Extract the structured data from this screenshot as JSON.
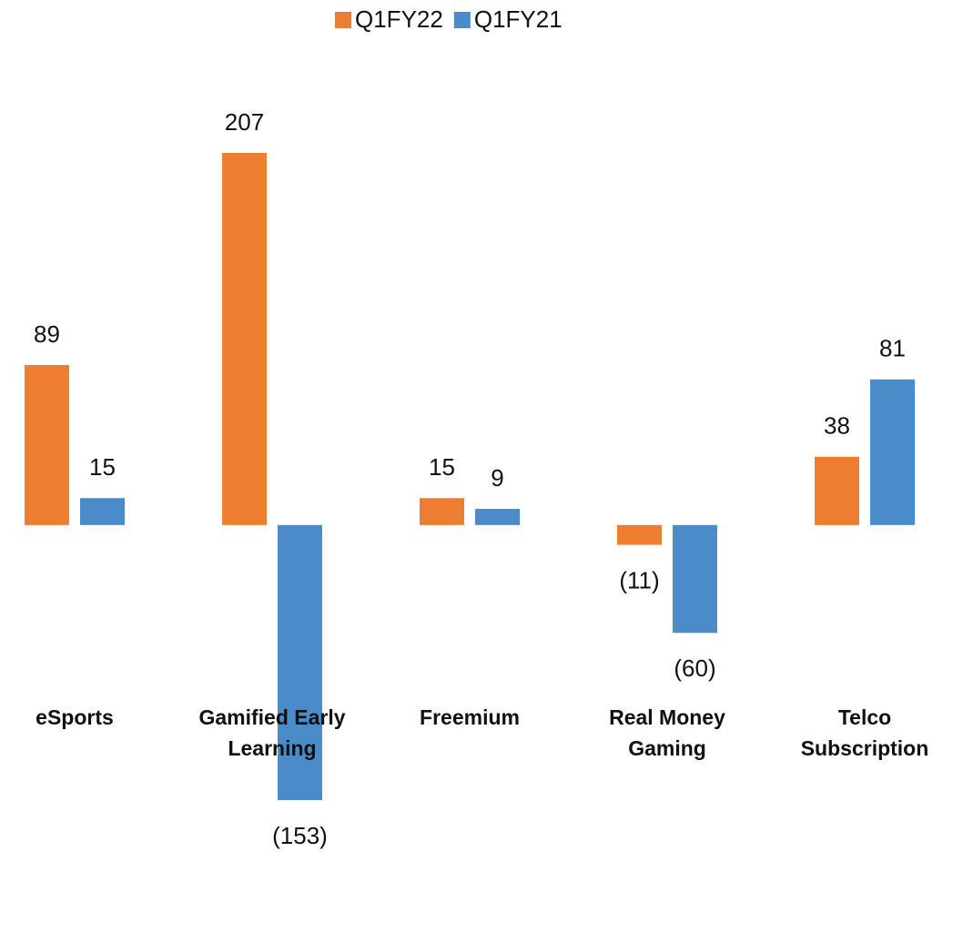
{
  "chart_data": {
    "type": "bar",
    "categories": [
      "eSports",
      "Gamified Early Learning",
      "Freemium",
      "Real Money Gaming",
      "Telco Subscription"
    ],
    "series": [
      {
        "name": "Q1FY22",
        "color": "#ed7d31",
        "values": [
          89,
          207,
          15,
          -11,
          38
        ],
        "value_labels": [
          "89",
          "207",
          "15",
          "(11)",
          "38"
        ]
      },
      {
        "name": "Q1FY21",
        "color": "#4a8cca",
        "values": [
          15,
          -153,
          9,
          -60,
          81
        ],
        "value_labels": [
          "15",
          "(153)",
          "9",
          "(60)",
          "81"
        ]
      }
    ],
    "legend": "top",
    "grid": false
  }
}
